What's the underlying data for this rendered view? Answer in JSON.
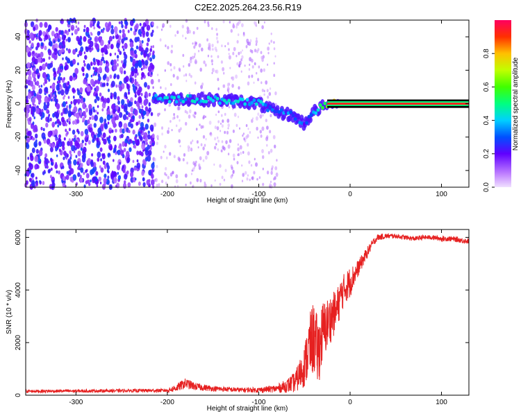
{
  "figure": {
    "title": "C2E2.2025.264.23.56.R19"
  },
  "chart_data": [
    {
      "type": "heatmap",
      "title": "C2E2.2025.264.23.56.R19",
      "xlabel": "Height of straight line (km)",
      "ylabel": "Frequency (Hz)",
      "xlim": [
        -355,
        130
      ],
      "ylim": [
        -50,
        50
      ],
      "xticks": [
        -300,
        -200,
        -100,
        0,
        100
      ],
      "yticks": [
        -40,
        -20,
        0,
        20,
        40
      ],
      "colorbar": {
        "label": "Normalized spectral amplitude",
        "range": [
          0,
          1
        ],
        "ticks": [
          0.0,
          0.2,
          0.4,
          0.6,
          0.8
        ]
      },
      "signal_track": [
        {
          "x": -215,
          "y": 4,
          "amp": 0.35
        },
        {
          "x": -200,
          "y": 3,
          "amp": 0.4
        },
        {
          "x": -180,
          "y": 3,
          "amp": 0.4
        },
        {
          "x": -160,
          "y": 2.5,
          "amp": 0.4
        },
        {
          "x": -140,
          "y": 2,
          "amp": 0.4
        },
        {
          "x": -120,
          "y": 1.5,
          "amp": 0.4
        },
        {
          "x": -100,
          "y": 0,
          "amp": 0.38
        },
        {
          "x": -90,
          "y": -3,
          "amp": 0.35
        },
        {
          "x": -80,
          "y": -5,
          "amp": 0.3
        },
        {
          "x": -70,
          "y": -6,
          "amp": 0.3
        },
        {
          "x": -60,
          "y": -8,
          "amp": 0.3
        },
        {
          "x": -50,
          "y": -12,
          "amp": 0.25
        },
        {
          "x": -40,
          "y": -5,
          "amp": 0.35
        },
        {
          "x": -30,
          "y": -2,
          "amp": 0.5
        },
        {
          "x": -20,
          "y": 0,
          "amp": 0.7
        },
        {
          "x": -10,
          "y": 0.5,
          "amp": 0.85
        },
        {
          "x": 0,
          "y": 0.5,
          "amp": 0.95
        },
        {
          "x": 50,
          "y": 0,
          "amp": 1.0
        },
        {
          "x": 130,
          "y": 0,
          "amp": 1.0
        }
      ],
      "noise_region": {
        "x_from": -355,
        "x_to": -80,
        "amp": 0.15
      }
    },
    {
      "type": "line",
      "title": "",
      "xlabel": "Height of straight line (km)",
      "ylabel": "SNR (10 * v/v)",
      "xlim": [
        -355,
        130
      ],
      "ylim": [
        0,
        6300
      ],
      "xticks": [
        -300,
        -200,
        -100,
        0,
        100
      ],
      "yticks": [
        0,
        2000,
        4000,
        6000
      ],
      "series": [
        {
          "name": "SNR",
          "color": "#e62020",
          "x": [
            -355,
            -300,
            -250,
            -200,
            -190,
            -180,
            -170,
            -150,
            -120,
            -100,
            -80,
            -70,
            -60,
            -55,
            -50,
            -45,
            -40,
            -35,
            -30,
            -25,
            -20,
            -15,
            -10,
            -5,
            0,
            5,
            10,
            15,
            20,
            25,
            30,
            40,
            50,
            60,
            70,
            80,
            90,
            100,
            110,
            120,
            130
          ],
          "y": [
            150,
            160,
            170,
            180,
            280,
            450,
            330,
            250,
            200,
            200,
            250,
            350,
            500,
            800,
            1100,
            1800,
            2200,
            1600,
            2400,
            2700,
            3000,
            3200,
            3800,
            4100,
            4300,
            4600,
            4900,
            5200,
            5500,
            5800,
            6000,
            6050,
            6050,
            6000,
            5950,
            6000,
            6000,
            5950,
            5950,
            5900,
            5850
          ],
          "noise_band": [
            60,
            60,
            60,
            70,
            150,
            200,
            150,
            100,
            90,
            100,
            150,
            250,
            400,
            600,
            800,
            1200,
            1400,
            1300,
            1200,
            1000,
            900,
            800,
            700,
            600,
            600,
            400,
            300,
            250,
            200,
            150,
            120,
            100,
            90,
            90,
            90,
            90,
            90,
            100,
            100,
            100,
            100
          ]
        }
      ]
    }
  ]
}
